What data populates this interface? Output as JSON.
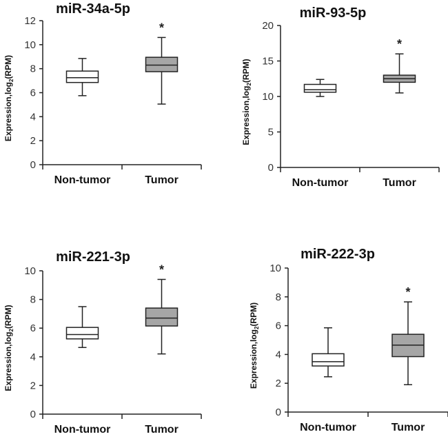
{
  "chart_data": [
    {
      "type": "box",
      "title": "miR-34a-5p",
      "ylabel_main": "Expression,log",
      "ylabel_sub": "2",
      "ylabel_tail": "(RPM)",
      "ylim": [
        0,
        12
      ],
      "yticks": [
        0,
        2,
        4,
        6,
        8,
        10,
        12
      ],
      "categories": [
        "Non-tumor",
        "Tumor"
      ],
      "boxes": [
        {
          "min": 5.75,
          "q1": 6.85,
          "median": 7.25,
          "q3": 7.8,
          "max": 8.85,
          "fill": "#ffffff"
        },
        {
          "min": 5.05,
          "q1": 7.75,
          "median": 8.3,
          "q3": 8.95,
          "max": 10.6,
          "fill": "#a6a6a6"
        }
      ],
      "annotation": "*"
    },
    {
      "type": "box",
      "title": "miR-93-5p",
      "ylabel_main": "Expression,log",
      "ylabel_sub": "2",
      "ylabel_tail": "(RPM)",
      "ylim": [
        0,
        20
      ],
      "yticks": [
        0,
        5,
        10,
        15,
        20
      ],
      "categories": [
        "Non-tumor",
        "Tumor"
      ],
      "boxes": [
        {
          "min": 10.0,
          "q1": 10.6,
          "median": 10.95,
          "q3": 11.7,
          "max": 12.4,
          "fill": "#ffffff"
        },
        {
          "min": 10.5,
          "q1": 12.0,
          "median": 12.5,
          "q3": 13.0,
          "max": 16.0,
          "fill": "#a6a6a6"
        }
      ],
      "annotation": "*"
    },
    {
      "type": "box",
      "title": "miR-221-3p",
      "ylabel_main": "Expression,log",
      "ylabel_sub": "2",
      "ylabel_tail": "(RPM)",
      "ylim": [
        0,
        10
      ],
      "yticks": [
        0,
        2,
        4,
        6,
        8,
        10
      ],
      "categories": [
        "Non-tumor",
        "Tumor"
      ],
      "boxes": [
        {
          "min": 4.65,
          "q1": 5.25,
          "median": 5.55,
          "q3": 6.05,
          "max": 7.5,
          "fill": "#ffffff"
        },
        {
          "min": 4.2,
          "q1": 6.15,
          "median": 6.7,
          "q3": 7.4,
          "max": 9.4,
          "fill": "#a6a6a6"
        }
      ],
      "annotation": "*"
    },
    {
      "type": "box",
      "title": "miR-222-3p",
      "ylabel_main": "Expression,log",
      "ylabel_sub": "2",
      "ylabel_tail": "(RPM)",
      "ylim": [
        0,
        10
      ],
      "yticks": [
        0,
        2,
        4,
        6,
        8,
        10
      ],
      "categories": [
        "Non-tumor",
        "Tumor"
      ],
      "boxes": [
        {
          "min": 2.45,
          "q1": 3.2,
          "median": 3.5,
          "q3": 4.05,
          "max": 5.85,
          "fill": "#ffffff"
        },
        {
          "min": 1.9,
          "q1": 3.85,
          "median": 4.65,
          "q3": 5.4,
          "max": 7.65,
          "fill": "#a6a6a6"
        }
      ],
      "annotation": "*"
    }
  ]
}
